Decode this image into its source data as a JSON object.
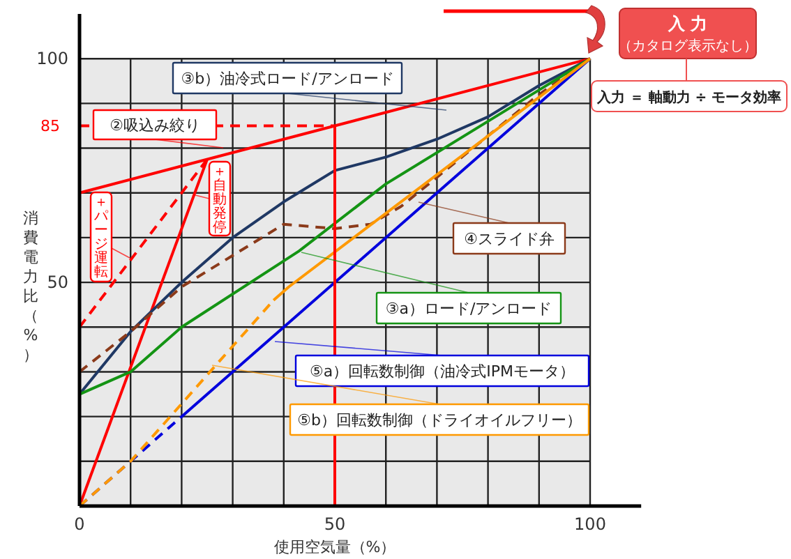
{
  "chart_data": {
    "type": "line",
    "xlabel": "使用空気量（%）",
    "ylabel": "消費電力比（%）",
    "xlim": [
      0,
      110
    ],
    "ylim": [
      0,
      110
    ],
    "xticks": [
      0,
      {
        "value": 10,
        "label": null
      },
      {
        "value": 20,
        "label": null
      },
      {
        "value": 30,
        "label": null
      },
      {
        "value": 40,
        "label": null
      },
      50,
      {
        "value": 60,
        "label": null
      },
      {
        "value": 70,
        "label": null
      },
      {
        "value": 80,
        "label": null
      },
      {
        "value": 90,
        "label": null
      },
      100
    ],
    "yticks": [
      {
        "value": 0,
        "label": null
      },
      {
        "value": 10,
        "label": null
      },
      {
        "value": 20,
        "label": null
      },
      {
        "value": 30,
        "label": null
      },
      {
        "value": 40,
        "label": null
      },
      50,
      {
        "value": 60,
        "label": null
      },
      {
        "value": 70,
        "label": null
      },
      {
        "value": 80,
        "label": null
      },
      {
        "value": 90,
        "label": null
      },
      100
    ],
    "grid": true,
    "marker": "none",
    "series": [
      {
        "name": "②吸込み絞り",
        "color": "#ff0000",
        "x": [
          0,
          100
        ],
        "values": [
          70,
          100
        ],
        "line_style": "solid"
      },
      {
        "name": "＋自動発停",
        "color": "#ff0000",
        "x": [
          0,
          25
        ],
        "values": [
          0,
          77.5
        ],
        "line_style": "solid"
      },
      {
        "name": "＋パージ運転",
        "color": "#ff0000",
        "x": [
          0,
          25
        ],
        "values": [
          40,
          77.5
        ],
        "line_style": "dashed"
      },
      {
        "name": "③b）油冷式ロード/アンロード",
        "color": "#1f3864",
        "x": [
          0,
          10,
          20,
          30,
          40,
          50,
          60,
          70,
          80,
          90,
          100
        ],
        "values": [
          25,
          39,
          50,
          60,
          68,
          75,
          78,
          82,
          87,
          94,
          100
        ],
        "line_style": "solid"
      },
      {
        "name": "④スライド弁",
        "color": "#8b3a1a",
        "x": [
          0,
          10,
          20,
          40,
          50,
          57,
          63,
          90,
          100
        ],
        "values": [
          30,
          39,
          49,
          63,
          62,
          63,
          67,
          92,
          100
        ],
        "line_style": "dashed"
      },
      {
        "name": "③a）ロード/アンロード",
        "color": "#149414",
        "x": [
          0,
          10,
          20,
          43,
          60,
          100
        ],
        "values": [
          25,
          30,
          40,
          57,
          72,
          100
        ],
        "line_style": "solid"
      },
      {
        "name": "⑤a）回転数制御（油冷式IPMモータ）",
        "color": "#0000dd",
        "x": [
          20,
          100
        ],
        "values": [
          20,
          100
        ],
        "line_style": "solid"
      },
      {
        "color": "#0000dd",
        "x": [
          0,
          20
        ],
        "values": [
          0,
          20
        ],
        "line_style": "dashed"
      },
      {
        "name": "⑤b）回転数制御（ドライオイルフリー）",
        "color": "#ff9900",
        "x": [
          38,
          41,
          100
        ],
        "values": [
          46,
          49,
          100
        ],
        "line_style": "solid"
      },
      {
        "color": "#ff9900",
        "x": [
          0,
          10,
          38
        ],
        "values": [
          0,
          10,
          46
        ],
        "line_style": "dashed"
      },
      {
        "color": "#ff0000",
        "x": [
          50,
          50
        ],
        "values": [
          0,
          85
        ],
        "line_style": "solid"
      },
      {
        "color": "#ff0000",
        "x": [
          0,
          50
        ],
        "values": [
          85,
          85
        ],
        "line_style": "dashed"
      }
    ],
    "annotations": [
      {
        "text": "85",
        "x": 0,
        "y": 85
      },
      "入 力",
      "（カタログ表示なし）",
      "入力 ＝ 軸動力 ÷ モータ効率"
    ]
  }
}
